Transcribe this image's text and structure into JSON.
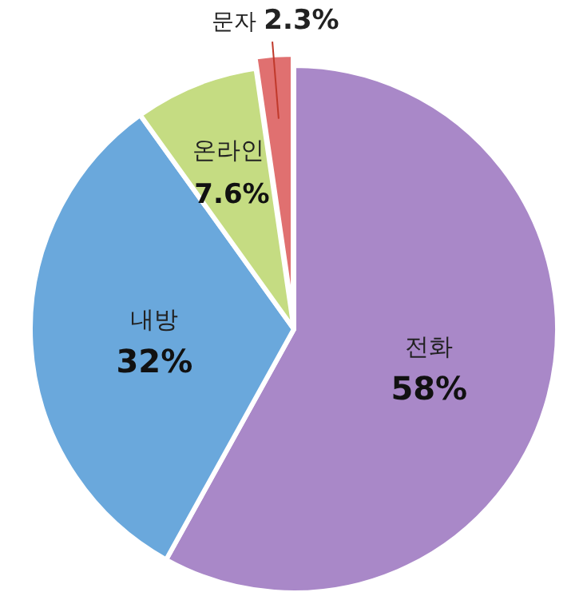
{
  "chart_data": {
    "type": "pie",
    "categories": [
      "전화",
      "내방",
      "온라인",
      "문자"
    ],
    "values": [
      58,
      32,
      7.6,
      2.3
    ],
    "colors": [
      "#a988c8",
      "#6aa8dc",
      "#c5dc82",
      "#e07070"
    ],
    "value_labels": [
      "58%",
      "32%",
      "7.6%",
      "2.3%"
    ]
  }
}
